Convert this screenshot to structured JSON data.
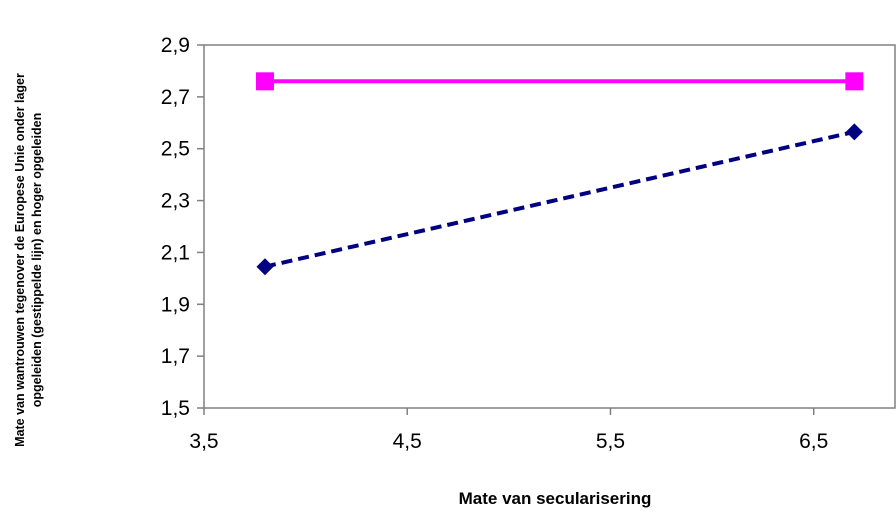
{
  "chart_data": {
    "type": "line",
    "xlabel": "Mate van secularisering",
    "ylabel_lines": [
      "Mate van wantrouwen tegenover de Europese Unie onder lager",
      "opgeleiden (gestippelde lijn) en hoger opgeleiden"
    ],
    "xlim": [
      3.5,
      6.9
    ],
    "ylim": [
      1.5,
      2.9
    ],
    "x_ticks": [
      "3,5",
      "4,5",
      "5,5",
      "6,5"
    ],
    "x_tick_values": [
      3.5,
      4.5,
      5.5,
      6.5
    ],
    "y_ticks": [
      "1,5",
      "1,7",
      "1,9",
      "2,1",
      "2,3",
      "2,5",
      "2,7",
      "2,9"
    ],
    "y_tick_values": [
      1.5,
      1.7,
      1.9,
      2.1,
      2.3,
      2.5,
      2.7,
      2.9
    ],
    "series": [
      {
        "key": "lager-opgeleiden",
        "color": "#000080",
        "dashed": true,
        "marker": "diamond",
        "points": [
          {
            "x": 3.8,
            "y": 2.045
          },
          {
            "x": 6.7,
            "y": 2.565
          }
        ]
      },
      {
        "key": "hoger-opgeleiden",
        "color": "#ff00ff",
        "dashed": false,
        "marker": "square",
        "points": [
          {
            "x": 3.8,
            "y": 2.76
          },
          {
            "x": 6.7,
            "y": 2.76
          }
        ]
      }
    ],
    "grid": false,
    "legend": "none"
  }
}
